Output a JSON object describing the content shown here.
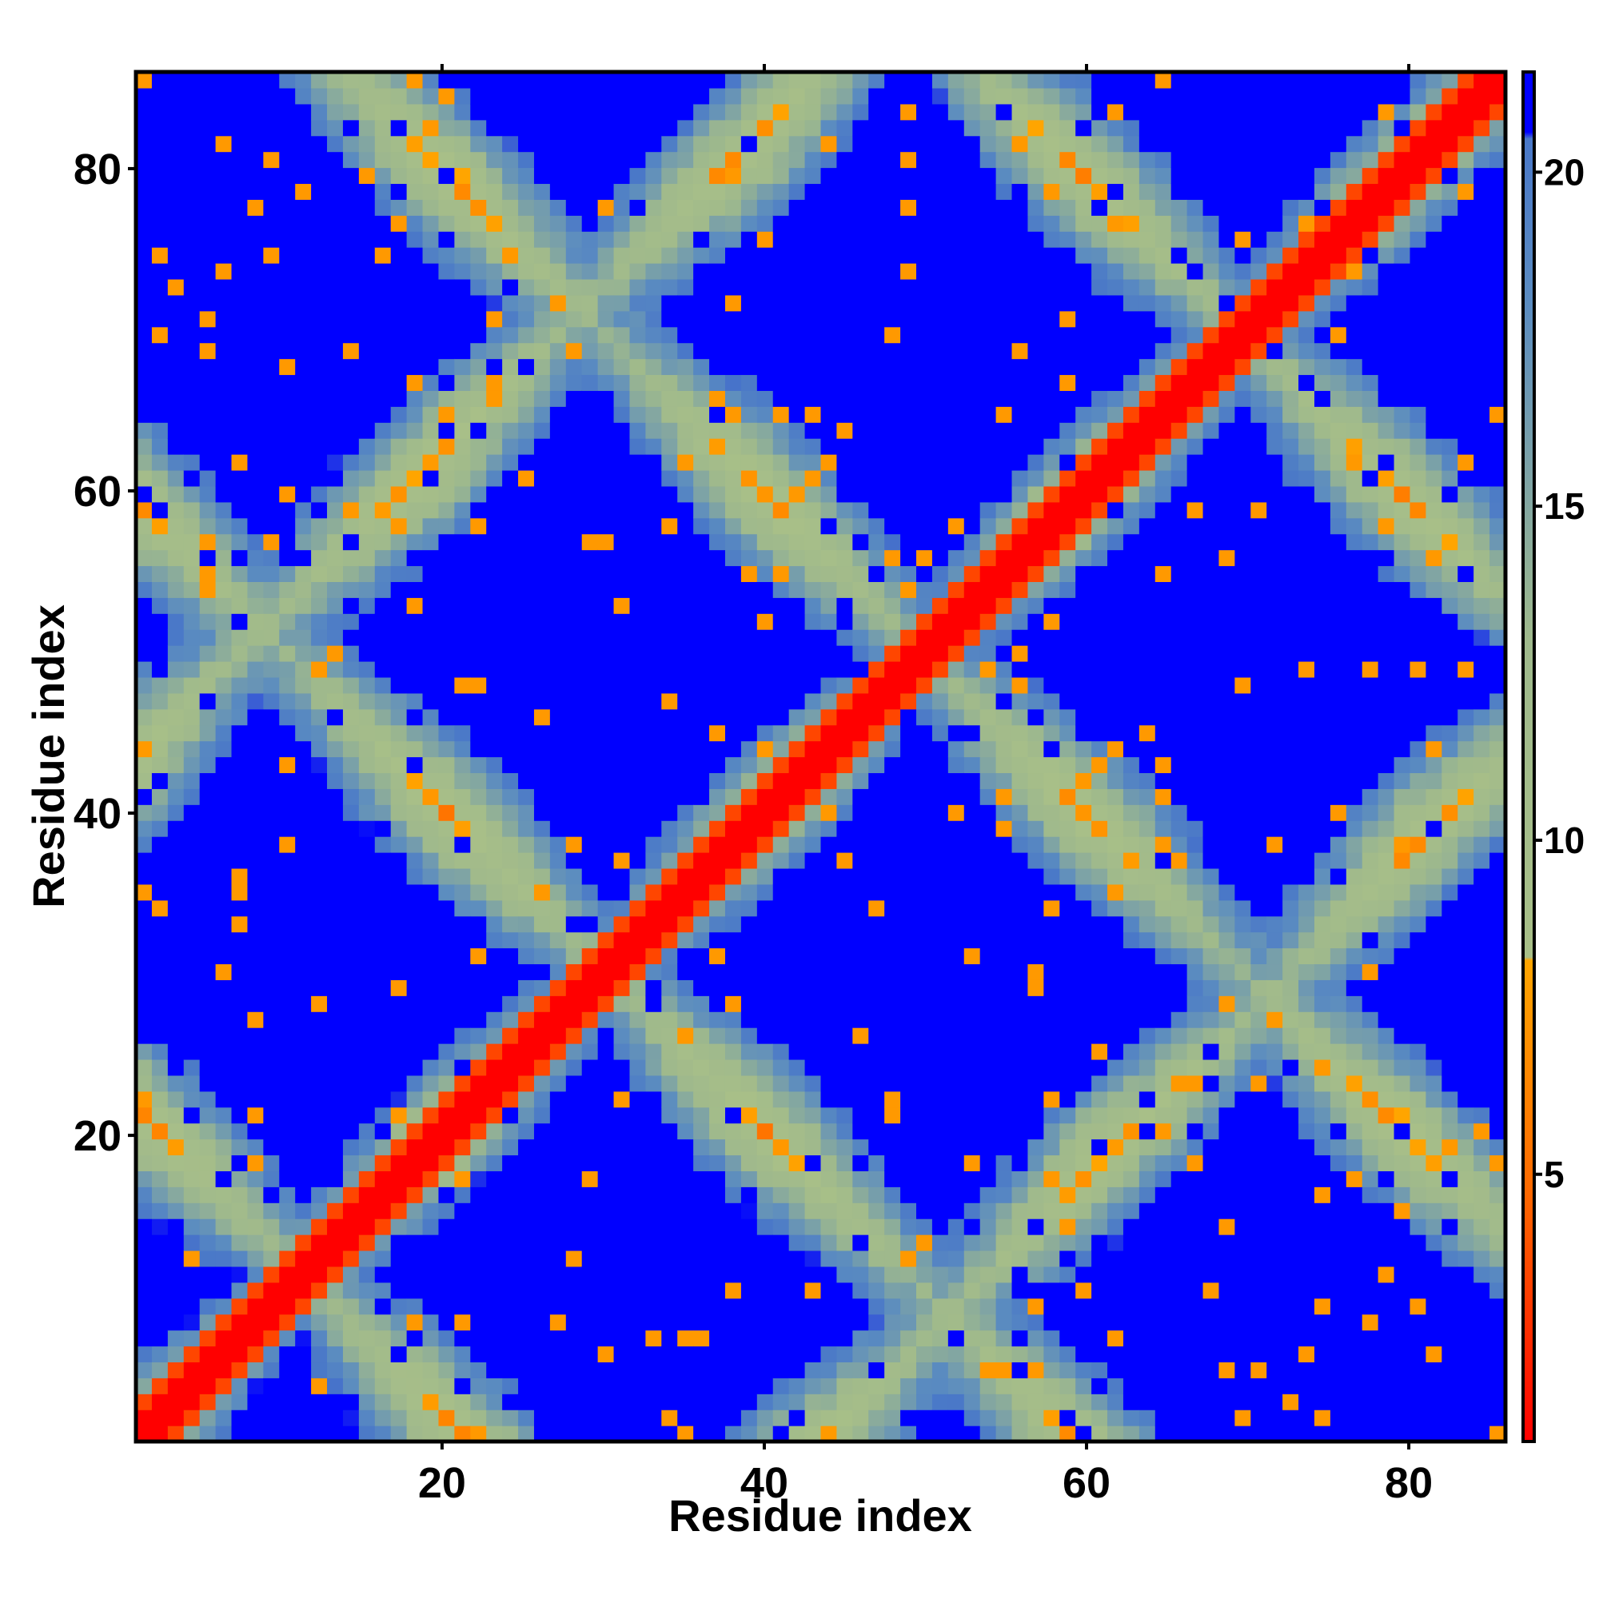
{
  "chart_data": {
    "type": "heatmap",
    "title": "",
    "xlabel": "Residue index",
    "ylabel": "Residue index",
    "n_residues": 86,
    "xlim": [
      1,
      86
    ],
    "ylim": [
      1,
      86
    ],
    "x_ticks": [
      20,
      40,
      60,
      80
    ],
    "y_ticks": [
      20,
      40,
      60,
      80
    ],
    "colorbar": {
      "ticks": [
        5,
        10,
        15,
        20
      ],
      "range": [
        1,
        21.5
      ],
      "stops": [
        {
          "value": 1,
          "color": "#ff0000"
        },
        {
          "value": 4.8,
          "color": "#ff6a00"
        },
        {
          "value": 8.2,
          "color": "#ffa500"
        },
        {
          "value": 8.25,
          "color": "#a8bf88"
        },
        {
          "value": 13,
          "color": "#9fb98c"
        },
        {
          "value": 18,
          "color": "#5b8cc0"
        },
        {
          "value": 20.5,
          "color": "#4a78c8"
        },
        {
          "value": 20.6,
          "color": "#0000ff"
        },
        {
          "value": 21.5,
          "color": "#0000ff"
        }
      ]
    },
    "matrix_model": {
      "description_values": "Symmetric residue distance matrix; values in distance units shown by colorbar",
      "diagonal_value": 1,
      "secondary_bands_sum": [
        22,
        60,
        100,
        140
      ],
      "secondary_bands_diff": [
        -43,
        43
      ],
      "saturation_value": 21.5
    },
    "grid": false,
    "legend": "colorbar-right"
  },
  "colors": {
    "diagonal": "#ff0000",
    "contact": "#ffa500",
    "background": "#0000ff",
    "midrange": "#9fb98c"
  }
}
